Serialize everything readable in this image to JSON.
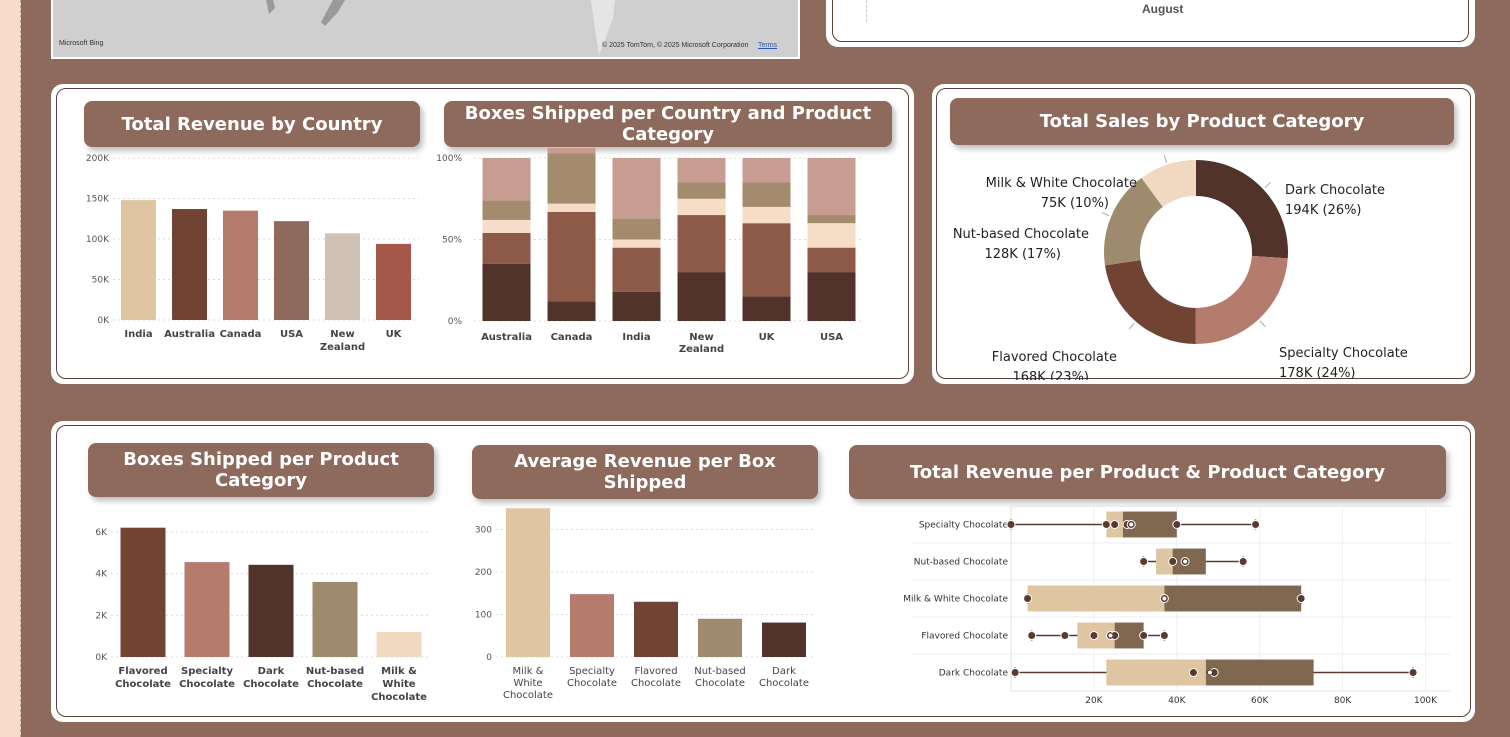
{
  "map": {
    "bing_label": "Microsoft Bing",
    "copyright": "© 2025 TomTom, © 2025 Microsoft Corporation",
    "terms_link": "Terms"
  },
  "top_right_chart": {
    "axis_label": "August"
  },
  "colors": {
    "background": "#8e6a5c",
    "banner": "#8e6a5c",
    "dark_choc": "#52332a",
    "flavored": "#724535",
    "specialty": "#b57b6d",
    "nut": "#9e8a6c",
    "milk_white": "#f1d9c1",
    "beige": "#dfc5a1"
  },
  "titles": {
    "revenue_by_country": "Total Revenue by Country",
    "boxes_country_category": "Boxes Shipped per Country and Product Category",
    "sales_by_category": "Total Sales by Product Category",
    "boxes_by_category": "Boxes Shipped per Product Category",
    "avg_revenue_box": "Average Revenue per Box Shipped",
    "revenue_product_category": "Total Revenue per Product & Product Category"
  },
  "chart_data": [
    {
      "id": "revenue_by_country",
      "type": "bar",
      "title": "Total Revenue by Country",
      "categories": [
        "India",
        "Australia",
        "Canada",
        "USA",
        "New Zealand",
        "UK"
      ],
      "category_lines": [
        [
          "India"
        ],
        [
          "Australia"
        ],
        [
          "Canada"
        ],
        [
          "USA"
        ],
        [
          "New",
          "Zealand"
        ],
        [
          "UK"
        ]
      ],
      "values": [
        148000,
        137000,
        135000,
        122000,
        107000,
        94000
      ],
      "bar_colors": [
        "#dfc5a1",
        "#714333",
        "#b57b6d",
        "#8e6a5c",
        "#cfc1b4",
        "#a3584a"
      ],
      "ylim": [
        0,
        200000
      ],
      "yticks": [
        0,
        50000,
        100000,
        150000,
        200000
      ],
      "ytick_labels": [
        "0K",
        "50K",
        "100K",
        "150K",
        "200K"
      ],
      "grid": true
    },
    {
      "id": "boxes_country_category",
      "type": "bar",
      "stacked": true,
      "title": "Boxes Shipped per Country and Product Category",
      "categories": [
        "Australia",
        "Canada",
        "India",
        "New Zealand",
        "UK",
        "USA"
      ],
      "category_lines": [
        [
          "Australia"
        ],
        [
          "Canada"
        ],
        [
          "India"
        ],
        [
          "New",
          "Zealand"
        ],
        [
          "UK"
        ],
        [
          "USA"
        ]
      ],
      "ytick_labels": [
        "0%",
        "50%",
        "100%"
      ],
      "yticks": [
        0,
        50,
        100
      ],
      "ylim": [
        0,
        100
      ],
      "segment_colors": [
        "#52332a",
        "#8e5a48",
        "#f6ddc8",
        "#a58b6e",
        "#c89d91"
      ],
      "series": [
        {
          "values": [
            35,
            12,
            18,
            30,
            15,
            30
          ]
        },
        {
          "values": [
            19,
            55,
            27,
            35,
            45,
            15
          ]
        },
        {
          "values": [
            8,
            5,
            5,
            10,
            10,
            15
          ]
        },
        {
          "values": [
            12,
            31,
            13,
            10,
            15,
            5
          ]
        },
        {
          "values": [
            26,
            16,
            37,
            15,
            15,
            35
          ]
        }
      ]
    },
    {
      "id": "sales_by_category",
      "type": "pie",
      "donut": true,
      "title": "Total Sales by Product Category",
      "slices": [
        {
          "name": "Dark Chocolate",
          "value": 194,
          "label": "194K (26%)",
          "color": "#52332a"
        },
        {
          "name": "Specialty Chocolate",
          "value": 178,
          "label": "178K (24%)",
          "color": "#b57b6d"
        },
        {
          "name": "Flavored Chocolate",
          "value": 168,
          "label": "168K (23%)",
          "color": "#714333"
        },
        {
          "name": "Nut-based Chocolate",
          "value": 128,
          "label": "128K (17%)",
          "color": "#9e8a6c"
        },
        {
          "name": "Milk & White Chocolate",
          "value": 75,
          "label": "75K (10%)",
          "color": "#f1d9c1"
        }
      ]
    },
    {
      "id": "boxes_by_category",
      "type": "bar",
      "title": "Boxes Shipped per Product Category",
      "categories": [
        "Flavored Chocolate",
        "Specialty Chocolate",
        "Dark Chocolate",
        "Nut-based Chocolate",
        "Milk & White Chocolate"
      ],
      "category_lines": [
        [
          "Flavored",
          "Chocolate"
        ],
        [
          "Specialty",
          "Chocolate"
        ],
        [
          "Dark",
          "Chocolate"
        ],
        [
          "Nut-based",
          "Chocolate"
        ],
        [
          "Milk &",
          "White",
          "Chocolate"
        ]
      ],
      "values": [
        6200,
        4550,
        4420,
        3600,
        1200
      ],
      "bar_colors": [
        "#714333",
        "#b57b6d",
        "#52332a",
        "#9e8a6c",
        "#f1d9c1"
      ],
      "ylim": [
        0,
        7000
      ],
      "yticks": [
        0,
        2000,
        4000,
        6000
      ],
      "ytick_labels": [
        "0K",
        "2K",
        "4K",
        "6K"
      ],
      "grid": true
    },
    {
      "id": "avg_revenue_box",
      "type": "bar",
      "title": "Average Revenue per Box Shipped",
      "categories": [
        "Milk & White Chocolate",
        "Specialty Chocolate",
        "Flavored Chocolate",
        "Nut-based Chocolate",
        "Dark Chocolate"
      ],
      "category_lines": [
        [
          "Milk &",
          "White",
          "Chocolate"
        ],
        [
          "Specialty",
          "Chocolate"
        ],
        [
          "Flavored",
          "Chocolate"
        ],
        [
          "Nut-based",
          "Chocolate"
        ],
        [
          "Dark",
          "Chocolate"
        ]
      ],
      "values": [
        350,
        148,
        130,
        90,
        81
      ],
      "bar_colors": [
        "#dfc5a1",
        "#b57b6d",
        "#714333",
        "#9e8a6c",
        "#52332a"
      ],
      "ylim": [
        0,
        360
      ],
      "yticks": [
        0,
        100,
        200,
        300
      ],
      "ytick_labels": [
        "0",
        "100",
        "200",
        "300"
      ],
      "grid": true
    },
    {
      "id": "revenue_product_category",
      "type": "scatter",
      "subtype": "box-and-whisker",
      "title": "Total Revenue per Product & Product Category",
      "xlim": [
        0,
        117000
      ],
      "xticks": [
        20000,
        40000,
        60000,
        80000,
        100000
      ],
      "xtick_labels": [
        "20K",
        "40K",
        "60K",
        "80K",
        "100K"
      ],
      "box_colors": [
        "#dfc5a1",
        "#806850"
      ],
      "categories": [
        "Specialty Chocolate",
        "Nut-based Chocolate",
        "Milk & White Chocolate",
        "Flavored Chocolate",
        "Dark Chocolate"
      ],
      "boxes": [
        {
          "name": "Specialty Chocolate",
          "min": 0,
          "q1": 23000,
          "median": 27000,
          "q3": 40000,
          "max": 59000,
          "mean": 29000,
          "points": [
            0,
            23000,
            25000,
            28000,
            29000,
            40000,
            59000
          ]
        },
        {
          "name": "Nut-based Chocolate",
          "min": 32000,
          "q1": 35000,
          "median": 39000,
          "q3": 47000,
          "max": 56000,
          "mean": 42000,
          "points": [
            32000,
            39000,
            42000,
            56000
          ]
        },
        {
          "name": "Milk & White Chocolate",
          "min": 4000,
          "q1": 4000,
          "median": 37000,
          "q3": 70000,
          "max": 70000,
          "mean": 37000,
          "points": [
            4000,
            37000,
            70000
          ]
        },
        {
          "name": "Flavored Chocolate",
          "min": 5000,
          "q1": 16000,
          "median": 25000,
          "q3": 32000,
          "max": 37000,
          "mean": 24000,
          "points": [
            5000,
            13000,
            20000,
            24000,
            25000,
            32000,
            37000
          ]
        },
        {
          "name": "Dark Chocolate",
          "min": 1000,
          "q1": 23000,
          "median": 47000,
          "q3": 73000,
          "max": 97000,
          "mean": 48000,
          "points": [
            1000,
            44000,
            49000,
            97000
          ]
        }
      ]
    }
  ]
}
